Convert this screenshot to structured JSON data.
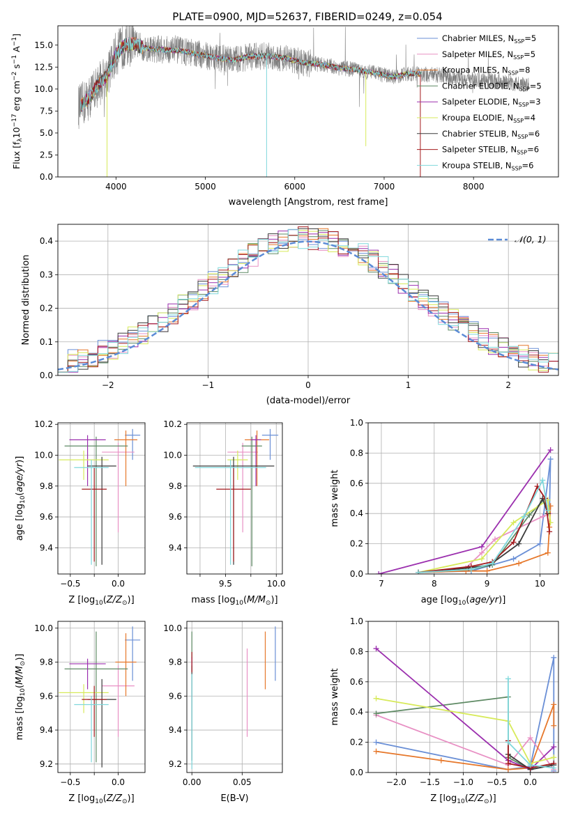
{
  "figure": {
    "title": "PLATE=0900, MJD=52637, FIBERID=0249, z=0.054",
    "models": [
      {
        "name": "Chabrier MILES, N$_{SSP}$=5",
        "label": "Chabrier MILES, N",
        "nssp": "5",
        "color": "#6a8fd6"
      },
      {
        "name": "Salpeter MILES, N$_{SSP}$=5",
        "label": "Salpeter MILES, N",
        "nssp": "5",
        "color": "#e890c4"
      },
      {
        "name": "Kroupa MILES, N$_{SSP}$=8",
        "label": "Kroupa MILES, N",
        "nssp": "8",
        "color": "#e6772a"
      },
      {
        "name": "Chabrier ELODIE, N$_{SSP}$=5",
        "label": "Chabrier ELODIE, N",
        "nssp": "5",
        "color": "#5e8a64"
      },
      {
        "name": "Salpeter ELODIE, N$_{SSP}$=3",
        "label": "Salpeter ELODIE, N",
        "nssp": "3",
        "color": "#9b2fae"
      },
      {
        "name": "Kroupa ELODIE, N$_{SSP}$=4",
        "label": "Kroupa ELODIE, N",
        "nssp": "4",
        "color": "#d7ea5a"
      },
      {
        "name": "Chabrier STELIB, N$_{SSP}$=6",
        "label": "Chabrier STELIB, N",
        "nssp": "6",
        "color": "#3a3a3a"
      },
      {
        "name": "Salpeter STELIB, N$_{SSP}$=6",
        "label": "Salpeter STELIB, N",
        "nssp": "6",
        "color": "#a3191c"
      },
      {
        "name": "Kroupa STELIB, N$_{SSP}$=6",
        "label": "Kroupa STELIB, N",
        "nssp": "6",
        "color": "#7fd8dc"
      }
    ]
  },
  "chart_data": [
    {
      "id": "spectrum",
      "type": "line",
      "xlabel": "wavelength [Angstrom, rest frame]",
      "ylabel": "Flux [f_λ 10^-17 erg cm^-2 s^-1 A^-1]",
      "xlim": [
        3350,
        8950
      ],
      "ylim": [
        0,
        17.2
      ],
      "xticks": [
        4000,
        5000,
        6000,
        7000,
        8000
      ],
      "yticks": [
        0.0,
        2.5,
        5.0,
        7.5,
        10.0,
        12.5,
        15.0
      ],
      "data_color": "#808080",
      "continuum": [
        [
          3600,
          8.0
        ],
        [
          3700,
          9.0
        ],
        [
          3800,
          10.5
        ],
        [
          3900,
          11.5
        ],
        [
          4000,
          14.0
        ],
        [
          4100,
          15.0
        ],
        [
          4200,
          15.2
        ],
        [
          4300,
          14.7
        ],
        [
          4400,
          14.6
        ],
        [
          4500,
          14.5
        ],
        [
          4700,
          14.4
        ],
        [
          4900,
          14.0
        ],
        [
          5100,
          13.6
        ],
        [
          5300,
          13.3
        ],
        [
          5500,
          13.7
        ],
        [
          5700,
          13.8
        ],
        [
          5900,
          13.5
        ],
        [
          6100,
          13.0
        ],
        [
          6300,
          12.8
        ],
        [
          6500,
          12.4
        ],
        [
          6700,
          12.2
        ],
        [
          6900,
          11.8
        ],
        [
          7100,
          11.4
        ],
        [
          7300,
          11.8
        ],
        [
          7400,
          11.7
        ],
        [
          7600,
          11.6
        ],
        [
          7800,
          11.3
        ],
        [
          8000,
          11.0
        ],
        [
          8200,
          10.9
        ],
        [
          8400,
          10.7
        ],
        [
          8600,
          10.4
        ]
      ],
      "model_range": [
        3600,
        7420
      ],
      "data_range": [
        3580,
        8620
      ]
    },
    {
      "id": "residuals",
      "type": "step-histogram",
      "xlabel": "(data-model)/error",
      "ylabel": "Normed distribution",
      "xlim": [
        -2.5,
        2.5
      ],
      "ylim": [
        0,
        0.45
      ],
      "xticks": [
        -2,
        -1,
        0,
        1,
        2
      ],
      "yticks": [
        0.0,
        0.1,
        0.2,
        0.3,
        0.4
      ],
      "bins": 50,
      "reference": {
        "label": "𝒩(0, 1)",
        "mean": 0,
        "sigma": 1,
        "color": "#5b8bd6"
      }
    },
    {
      "id": "age-vs-Z",
      "type": "errorbar",
      "xlabel": "Z [log10(Z/Z⊙)]",
      "ylabel": "age  [log10(age/yr)]",
      "xlim": [
        -0.63,
        0.28
      ],
      "ylim": [
        9.23,
        10.21
      ],
      "xticks": [
        -0.5,
        -0.25,
        0.0
      ],
      "xticklabels": [
        "−0.5",
        "",
        "0.0"
      ],
      "yticks": [
        9.4,
        9.6,
        9.8,
        10.0,
        10.2
      ],
      "points": [
        {
          "model": 0,
          "x": 0.15,
          "y": 10.13,
          "xerr": 0.08,
          "yerr_lo": 0.16,
          "yerr_hi": 0.04
        },
        {
          "model": 1,
          "x": -0.0,
          "y": 10.02,
          "xerr": 0.17,
          "yerr_lo": 0.52,
          "yerr_hi": 0.06
        },
        {
          "model": 2,
          "x": 0.08,
          "y": 10.1,
          "xerr": 0.12,
          "yerr_lo": 0.3,
          "yerr_hi": 0.06
        },
        {
          "model": 3,
          "x": -0.23,
          "y": 10.06,
          "xerr": 0.33,
          "yerr_lo": 0.78,
          "yerr_hi": 0.06
        },
        {
          "model": 4,
          "x": -0.32,
          "y": 10.1,
          "xerr": 0.19,
          "yerr_lo": 0.3,
          "yerr_hi": 0.03
        },
        {
          "model": 5,
          "x": -0.36,
          "y": 9.97,
          "xerr": 0.26,
          "yerr_lo": 0.13,
          "yerr_hi": 0.06
        },
        {
          "model": 6,
          "x": -0.17,
          "y": 9.93,
          "xerr": 0.15,
          "yerr_lo": 0.64,
          "yerr_hi": 0.06
        },
        {
          "model": 7,
          "x": -0.25,
          "y": 9.78,
          "xerr": 0.13,
          "yerr_lo": 0.47,
          "yerr_hi": 0.14
        },
        {
          "model": 8,
          "x": -0.28,
          "y": 9.92,
          "xerr": 0.18,
          "yerr_lo": 0.63,
          "yerr_hi": 0.05
        }
      ]
    },
    {
      "id": "age-vs-mass",
      "type": "errorbar",
      "xlabel": "mass [log10(M/M⊙)]",
      "ylabel": "",
      "xlim": [
        9.12,
        10.06
      ],
      "ylim": [
        9.23,
        10.21
      ],
      "xticks": [
        9.25,
        9.5,
        9.75,
        10.0
      ],
      "xticklabels": [
        "",
        "9.5",
        "",
        "10.0"
      ],
      "yticks": [
        9.4,
        9.6,
        9.8,
        10.0,
        10.2
      ],
      "points": [
        {
          "model": 0,
          "x": 9.94,
          "y": 10.13,
          "xerr": 0.08,
          "yerr_lo": 0.16,
          "yerr_hi": 0.04
        },
        {
          "model": 1,
          "x": 9.67,
          "y": 10.02,
          "xerr": 0.15,
          "yerr_lo": 0.52,
          "yerr_hi": 0.06
        },
        {
          "model": 2,
          "x": 9.81,
          "y": 10.1,
          "xerr": 0.12,
          "yerr_lo": 0.3,
          "yerr_hi": 0.06
        },
        {
          "model": 3,
          "x": 9.76,
          "y": 10.06,
          "xerr": 0.1,
          "yerr_lo": 0.78,
          "yerr_hi": 0.06
        },
        {
          "model": 4,
          "x": 9.8,
          "y": 10.1,
          "xerr": 0.05,
          "yerr_lo": 0.3,
          "yerr_hi": 0.03
        },
        {
          "model": 5,
          "x": 9.62,
          "y": 9.97,
          "xerr": 0.1,
          "yerr_lo": 0.13,
          "yerr_hi": 0.06
        },
        {
          "model": 6,
          "x": 9.58,
          "y": 9.93,
          "xerr": 0.4,
          "yerr_lo": 0.64,
          "yerr_hi": 0.06
        },
        {
          "model": 7,
          "x": 9.58,
          "y": 9.78,
          "xerr": 0.17,
          "yerr_lo": 0.47,
          "yerr_hi": 0.14
        },
        {
          "model": 8,
          "x": 9.55,
          "y": 9.92,
          "xerr": 0.35,
          "yerr_lo": 0.63,
          "yerr_hi": 0.05
        }
      ]
    },
    {
      "id": "massweight-vs-age",
      "type": "line",
      "xlabel": "age  [log10(age/yr)]",
      "ylabel": "mass weight",
      "xlim": [
        6.75,
        10.35
      ],
      "ylim": [
        0,
        1.0
      ],
      "xticks": [
        7,
        8,
        9,
        10
      ],
      "yticks": [
        0.0,
        0.2,
        0.4,
        0.6,
        0.8,
        1.0
      ],
      "series": [
        {
          "model": 0,
          "x": [
            7.7,
            8.7,
            9.0,
            9.5,
            10.0,
            10.2,
            10.18
          ],
          "y": [
            0.01,
            0.02,
            0.05,
            0.1,
            0.2,
            0.76,
            0.4
          ]
        },
        {
          "model": 1,
          "x": [
            7.7,
            8.6,
            8.9,
            9.15,
            10.05,
            10.18
          ],
          "y": [
            0.01,
            0.04,
            0.14,
            0.23,
            0.38,
            0.4
          ]
        },
        {
          "model": 2,
          "x": [
            7.7,
            8.6,
            9.0,
            9.6,
            10.15,
            10.18,
            10.2
          ],
          "y": [
            0.01,
            0.02,
            0.02,
            0.07,
            0.14,
            0.31,
            0.45
          ]
        },
        {
          "model": 3,
          "x": [
            7.7,
            8.7,
            9.1,
            9.8,
            10.1,
            10.15
          ],
          "y": [
            0.01,
            0.03,
            0.06,
            0.39,
            0.5,
            0.4
          ]
        },
        {
          "model": 4,
          "x": [
            6.95,
            8.9,
            10.2
          ],
          "y": [
            0.0,
            0.18,
            0.82
          ]
        },
        {
          "model": 5,
          "x": [
            7.7,
            8.9,
            9.5,
            10.15,
            10.2
          ],
          "y": [
            0.01,
            0.1,
            0.34,
            0.49,
            0.34
          ]
        },
        {
          "model": 6,
          "x": [
            7.7,
            8.65,
            9.05,
            9.6,
            10.05,
            10.15
          ],
          "y": [
            0.01,
            0.04,
            0.06,
            0.2,
            0.5,
            0.4
          ]
        },
        {
          "model": 7,
          "x": [
            7.7,
            8.7,
            9.1,
            9.5,
            9.95,
            10.1,
            10.18
          ],
          "y": [
            0.01,
            0.05,
            0.08,
            0.21,
            0.58,
            0.5,
            0.28
          ]
        },
        {
          "model": 8,
          "x": [
            7.7,
            8.7,
            9.1,
            9.7,
            10.05,
            10.15
          ],
          "y": [
            0.01,
            0.03,
            0.07,
            0.38,
            0.62,
            0.42
          ]
        }
      ]
    },
    {
      "id": "mass-vs-Z",
      "type": "errorbar",
      "xlabel": "Z [log10(Z/Z⊙)]",
      "ylabel": "mass [log10(M/M⊙)]",
      "xlim": [
        -0.63,
        0.28
      ],
      "ylim": [
        9.15,
        10.04
      ],
      "xticks": [
        -0.5,
        -0.25,
        0.0
      ],
      "xticklabels": [
        "−0.5",
        "",
        "0.0"
      ],
      "yticks": [
        9.2,
        9.4,
        9.6,
        9.8,
        10.0
      ],
      "points": [
        {
          "model": 0,
          "x": 0.15,
          "y": 9.93,
          "xerr": 0.08,
          "yerr_lo": 0.24,
          "yerr_hi": 0.08
        },
        {
          "model": 1,
          "x": -0.0,
          "y": 9.66,
          "xerr": 0.17,
          "yerr_lo": 0.3,
          "yerr_hi": 0.12
        },
        {
          "model": 2,
          "x": 0.08,
          "y": 9.8,
          "xerr": 0.11,
          "yerr_lo": 0.2,
          "yerr_hi": 0.17
        },
        {
          "model": 3,
          "x": -0.23,
          "y": 9.76,
          "xerr": 0.33,
          "yerr_lo": 0.55,
          "yerr_hi": 0.22
        },
        {
          "model": 4,
          "x": -0.32,
          "y": 9.79,
          "xerr": 0.19,
          "yerr_lo": 0.15,
          "yerr_hi": 0.03
        },
        {
          "model": 5,
          "x": -0.36,
          "y": 9.62,
          "xerr": 0.26,
          "yerr_lo": 0.12,
          "yerr_hi": 0.05
        },
        {
          "model": 6,
          "x": -0.17,
          "y": 9.58,
          "xerr": 0.15,
          "yerr_lo": 0.4,
          "yerr_hi": 0.12
        },
        {
          "model": 7,
          "x": -0.25,
          "y": 9.58,
          "xerr": 0.13,
          "yerr_lo": 0.22,
          "yerr_hi": 0.08
        },
        {
          "model": 8,
          "x": -0.28,
          "y": 9.55,
          "xerr": 0.18,
          "yerr_lo": 0.34,
          "yerr_hi": 0.05
        }
      ]
    },
    {
      "id": "mass-vs-ebv",
      "type": "errorbar",
      "xlabel": "E(B-V)",
      "ylabel": "",
      "xlim": [
        -0.005,
        0.09
      ],
      "ylim": [
        9.15,
        10.04
      ],
      "xticks": [
        0.0,
        0.05
      ],
      "xticklabels": [
        "0.00",
        "0.05"
      ],
      "yticks": [
        9.2,
        9.4,
        9.6,
        9.8,
        10.0
      ],
      "points": [
        {
          "model": 0,
          "x": 0.083,
          "y": 9.85,
          "yerr_lo": 0.16,
          "yerr_hi": 0.16
        },
        {
          "model": 1,
          "x": 0.055,
          "y": 9.62,
          "yerr_lo": 0.26,
          "yerr_hi": 0.26
        },
        {
          "model": 2,
          "x": 0.073,
          "y": 9.81,
          "yerr_lo": 0.17,
          "yerr_hi": 0.17
        },
        {
          "model": 3,
          "x": 0.0,
          "y": 9.9,
          "yerr_lo": 0.08,
          "yerr_hi": 0.08
        },
        {
          "model": 4,
          "x": 0.0,
          "y": 9.79,
          "yerr_lo": 0.04,
          "yerr_hi": 0.04
        },
        {
          "model": 6,
          "x": 0.0,
          "y": 9.5,
          "yerr_lo": 0.28,
          "yerr_hi": 0.28
        },
        {
          "model": 7,
          "x": 0.0,
          "y": 9.8,
          "yerr_lo": 0.06,
          "yerr_hi": 0.06
        },
        {
          "model": 8,
          "x": 0.0,
          "y": 9.45,
          "yerr_lo": 0.28,
          "yerr_hi": 0.28
        }
      ]
    },
    {
      "id": "massweight-vs-Z",
      "type": "line",
      "xlabel": "Z [log10(Z/Z⊙)]",
      "ylabel": "mass weight",
      "xlim": [
        -2.42,
        0.42
      ],
      "ylim": [
        0,
        1.0
      ],
      "xticks": [
        -2.0,
        -1.5,
        -1.0,
        -0.5,
        0.0
      ],
      "yticks": [
        0.0,
        0.2,
        0.4,
        0.6,
        0.8,
        1.0
      ],
      "series": [
        {
          "model": 0,
          "x": [
            -2.3,
            -0.33,
            0.0,
            0.35,
            0.35
          ],
          "y": [
            0.2,
            0.02,
            0.04,
            0.76,
            0.01
          ]
        },
        {
          "model": 1,
          "x": [
            -2.3,
            -0.33,
            0.0,
            0.35
          ],
          "y": [
            0.38,
            0.05,
            0.23,
            0.02
          ]
        },
        {
          "model": 2,
          "x": [
            -2.3,
            -1.33,
            -0.33,
            0.0,
            0.35,
            0.35
          ],
          "y": [
            0.14,
            0.08,
            0.02,
            0.03,
            0.45,
            0.31
          ]
        },
        {
          "model": 3,
          "x": [
            -2.3,
            -0.33,
            -0.33,
            0.0,
            0.35
          ],
          "y": [
            0.39,
            0.5,
            0.1,
            0.02,
            0.05
          ]
        },
        {
          "model": 4,
          "x": [
            -2.3,
            -0.33,
            0.0,
            0.35
          ],
          "y": [
            0.82,
            0.08,
            0.02,
            0.17
          ]
        },
        {
          "model": 5,
          "x": [
            -2.3,
            -0.33,
            0.0,
            0.35
          ],
          "y": [
            0.49,
            0.34,
            0.06,
            0.1
          ]
        },
        {
          "model": 6,
          "x": [
            -0.33,
            0.0,
            0.35
          ],
          "y": [
            0.12,
            0.02,
            0.05
          ]
        },
        {
          "model": 7,
          "x": [
            -0.33,
            -0.33,
            0.0,
            0.35
          ],
          "y": [
            0.21,
            0.06,
            0.03,
            0.06
          ]
        },
        {
          "model": 8,
          "x": [
            -0.33,
            -0.33,
            0.0,
            0.35
          ],
          "y": [
            0.62,
            0.2,
            0.05,
            0.03
          ]
        }
      ]
    }
  ]
}
